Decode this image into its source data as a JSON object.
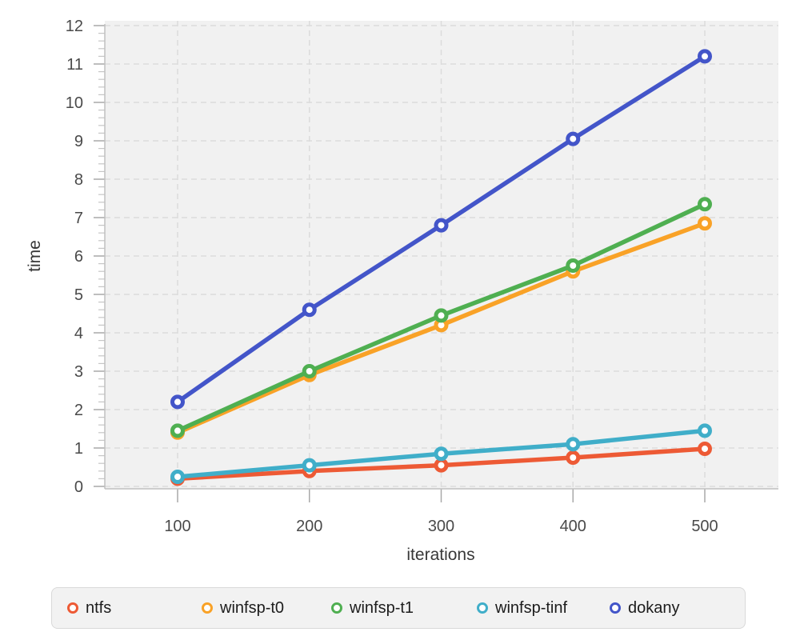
{
  "chart_data": {
    "type": "line",
    "title": "",
    "xlabel": "iterations",
    "ylabel": "time",
    "x": [
      100,
      200,
      300,
      400,
      500
    ],
    "x_ticks": [
      100,
      200,
      300,
      400,
      500
    ],
    "y_ticks": [
      0,
      1,
      2,
      3,
      4,
      5,
      6,
      7,
      8,
      9,
      10,
      11,
      12
    ],
    "xlim": [
      44,
      556
    ],
    "ylim": [
      0,
      12
    ],
    "grid": true,
    "grid_style": "dashed",
    "legend_position": "bottom",
    "marker": "open-circle",
    "series": [
      {
        "name": "ntfs",
        "color": "#ED5A35",
        "values": [
          0.2,
          0.4,
          0.55,
          0.75,
          0.98
        ]
      },
      {
        "name": "winfsp-t0",
        "color": "#F9A227",
        "values": [
          1.4,
          2.9,
          4.2,
          5.6,
          6.85
        ]
      },
      {
        "name": "winfsp-t1",
        "color": "#4FAF51",
        "values": [
          1.45,
          3.0,
          4.45,
          5.75,
          7.35
        ]
      },
      {
        "name": "winfsp-tinf",
        "color": "#40AEC9",
        "values": [
          0.25,
          0.55,
          0.85,
          1.1,
          1.45
        ]
      },
      {
        "name": "dokany",
        "color": "#4355C9",
        "values": [
          2.2,
          4.6,
          6.8,
          9.05,
          11.2
        ]
      }
    ],
    "colors": {
      "plot_background": "#f1f1f1",
      "gridline": "#dcdcdc",
      "axis_line": "#c0c0c0",
      "major_tick": "#a9a9a9",
      "minor_tick": "#c6c6c6",
      "tick_label": "#4a4a4a"
    }
  }
}
